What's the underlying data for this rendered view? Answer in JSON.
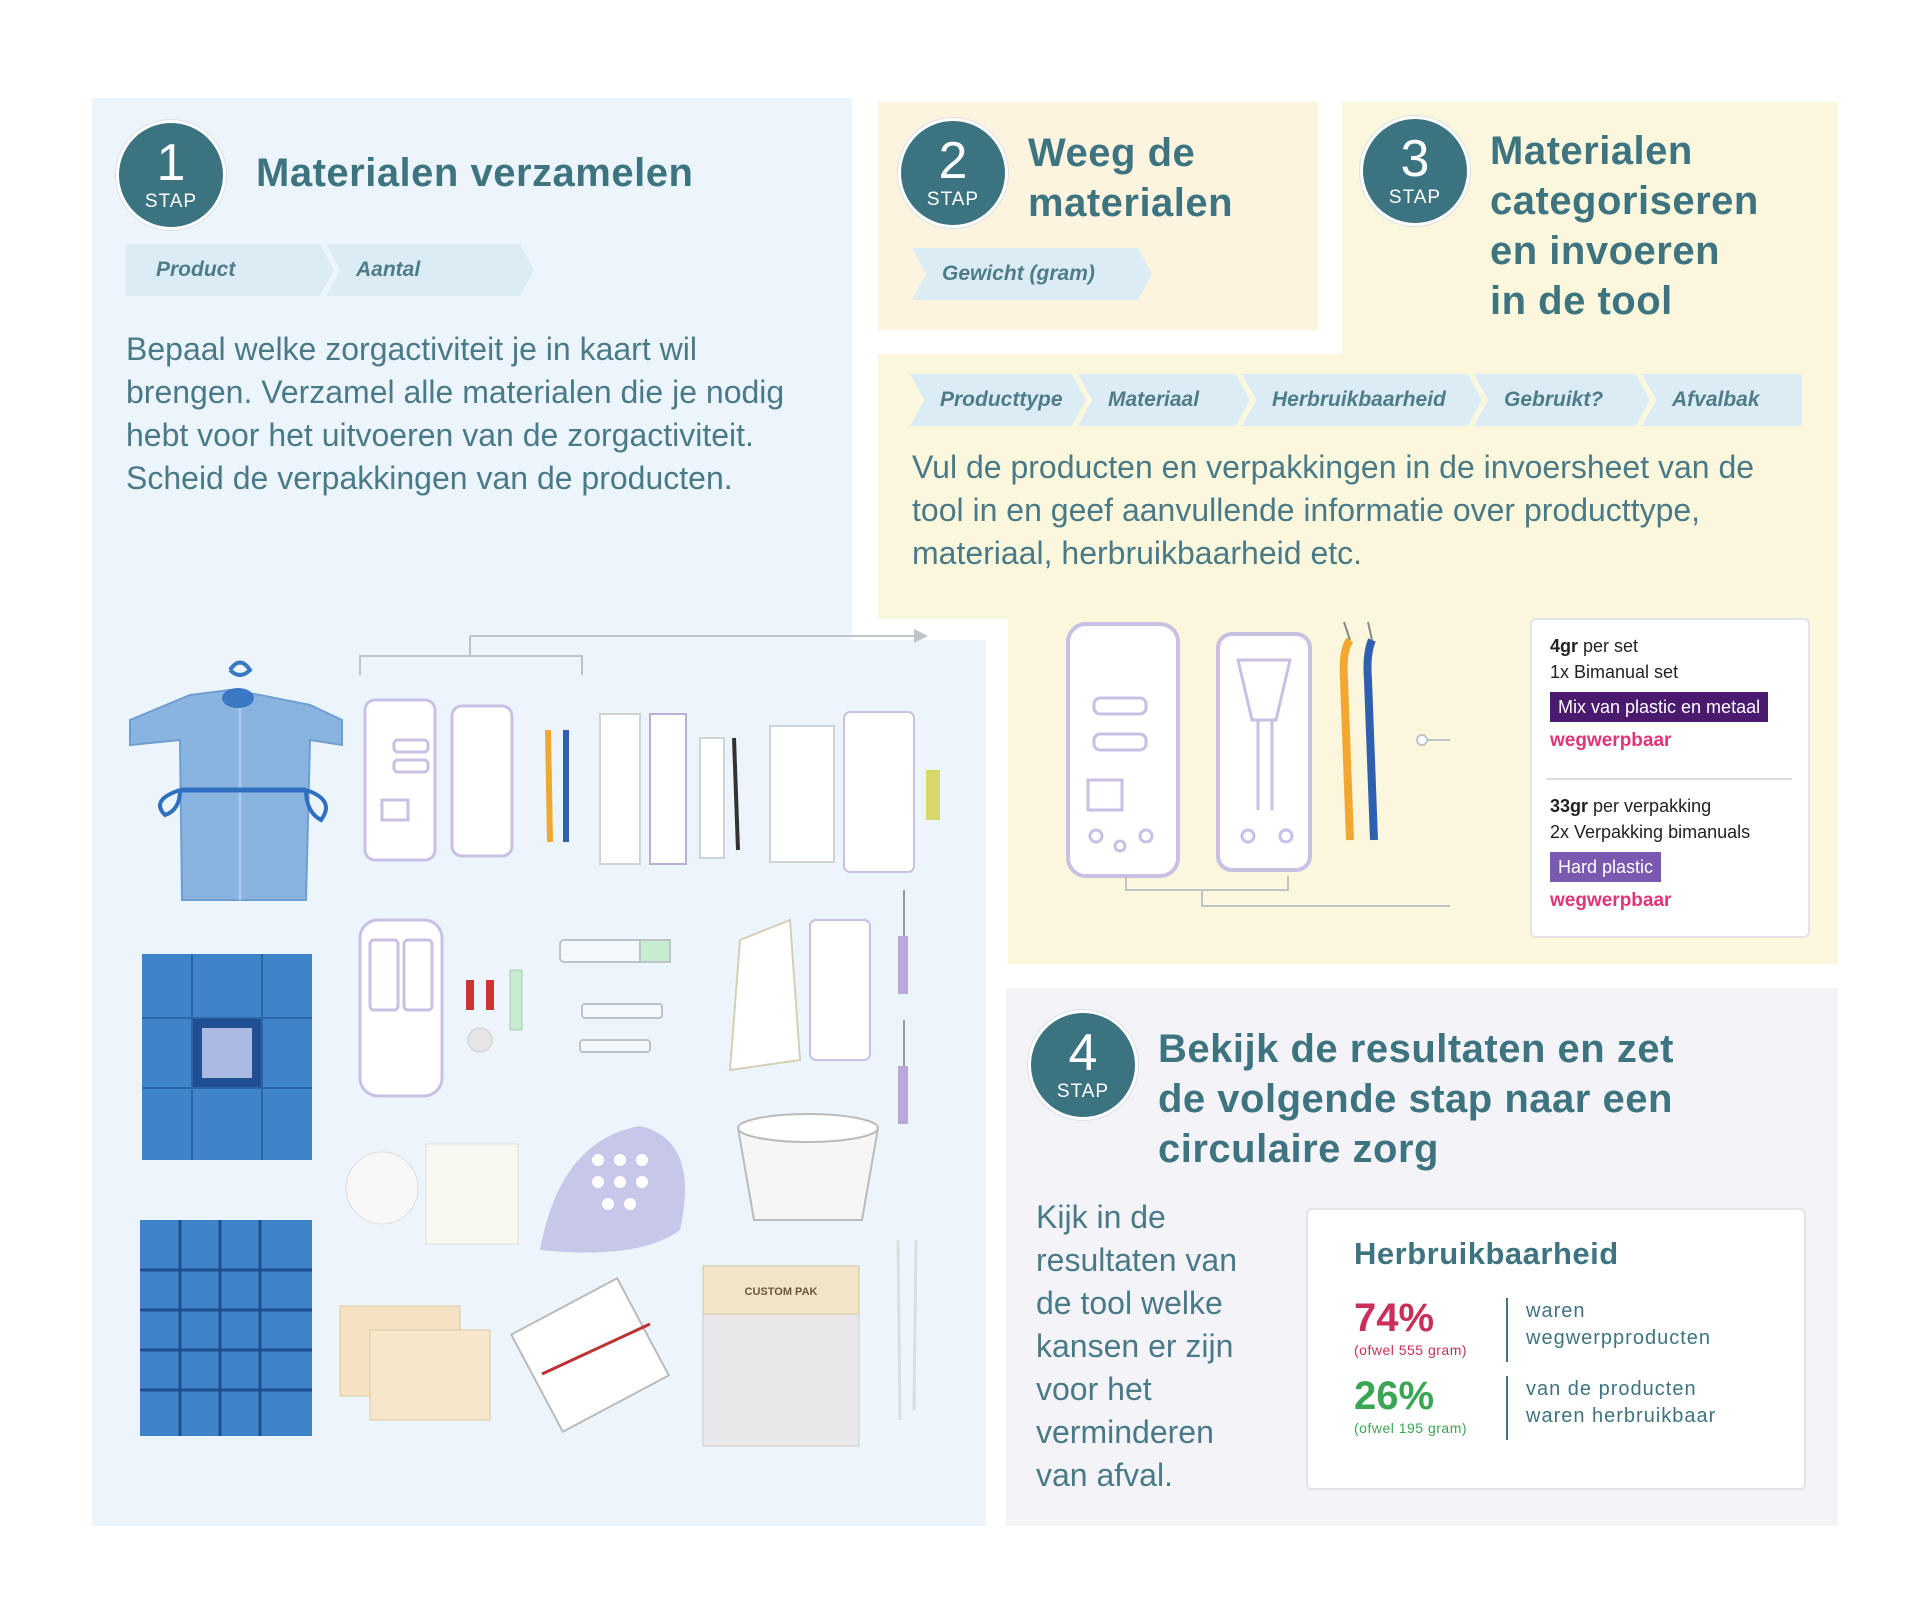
{
  "step1": {
    "number": "1",
    "stap": "STAP",
    "title": "Materialen verzamelen",
    "tags": [
      "Product",
      "Aantal"
    ],
    "body": "Bepaal welke zorgactiviteit je in kaart wil brengen. Verzamel alle materialen die je nodig hebt voor het uitvoeren van de zorgactiviteit. Scheid de verpakkingen van de producten.",
    "custom_pak_label": "CUSTOM PAK"
  },
  "step2": {
    "number": "2",
    "stap": "STAP",
    "title_line1": "Weeg de",
    "title_line2": "materialen",
    "tag": "Gewicht (gram)"
  },
  "step3": {
    "number": "3",
    "stap": "STAP",
    "title_lines": [
      "Materialen",
      "categoriseren",
      "en invoeren",
      "in de tool"
    ],
    "tags": [
      "Producttype",
      "Materiaal",
      "Herbruikbaarheid",
      "Gebruikt?",
      "Afvalbak"
    ],
    "body": "Vul de producten en verpakkingen in de invoersheet van de tool in en geef aanvullende informatie over producttype, materiaal, herbruikbaarheid etc.",
    "card": {
      "item1": {
        "weight": "4gr",
        "unit": " per set",
        "desc": "1x Bimanual set",
        "material": "Mix van plastic en metaal",
        "material_color": "#4a1a6e",
        "reuse": "wegwerpbaar"
      },
      "item2": {
        "weight": "33gr",
        "unit": " per verpakking",
        "desc": "2x Verpakking bimanuals",
        "material": "Hard plastic",
        "material_color": "#7a5ab0",
        "reuse": "wegwerpbaar"
      }
    }
  },
  "step4": {
    "number": "4",
    "stap": "STAP",
    "title_lines": [
      "Bekijk de resultaten en zet",
      "de volgende stap naar een",
      "circulaire zorg"
    ],
    "body_lines": [
      "Kijk in de",
      "resultaten van",
      "de tool welke",
      "kansen er zijn",
      "voor het",
      "verminderen",
      "van afval."
    ],
    "results": {
      "heading": "Herbruikbaarheid",
      "row1": {
        "pct": "74%",
        "sub": "(ofwel 555 gram)",
        "text1": "waren",
        "text2": "wegwerpproducten",
        "color": "#c8305a"
      },
      "row2": {
        "pct": "26%",
        "sub": "(ofwel 195 gram)",
        "text1": "van de producten",
        "text2": "waren herbruikbaar",
        "color": "#3aa654"
      }
    }
  },
  "colors": {
    "teal": "#3c7380",
    "panel_blue": "#edf5fc",
    "panel_yellow": "#fbf7dc",
    "panel_orange": "#fdf4e0",
    "panel_grey": "#f3f3f8"
  }
}
